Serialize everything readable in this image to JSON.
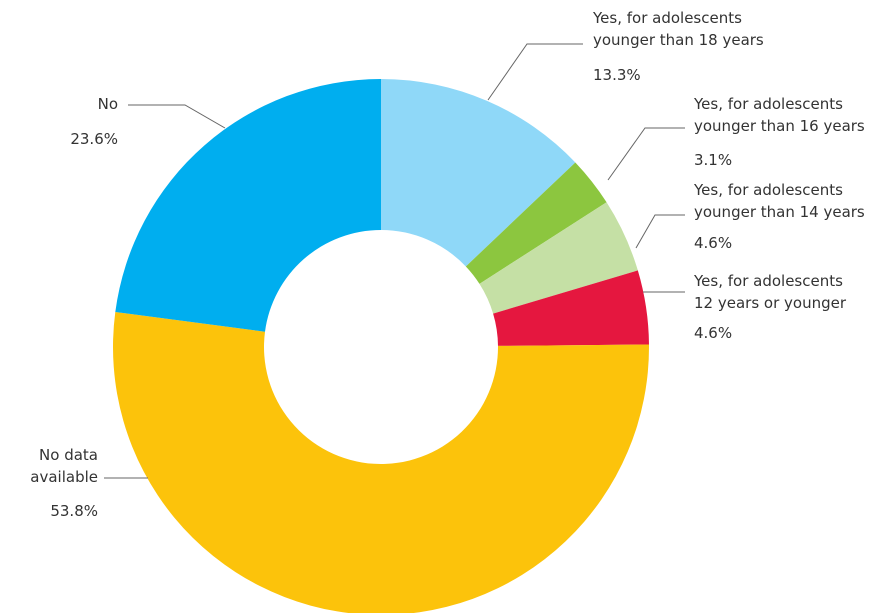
{
  "chart_data": {
    "type": "donut",
    "categories": [
      "Yes, for adolescents\nyounger than 18 years",
      "Yes, for adolescents\nyounger than 16 years",
      "Yes, for adolescents\nyounger than 14 years",
      "Yes, for adolescents\n12 years or younger",
      "No data\navailable",
      "No"
    ],
    "values": [
      13.3,
      3.1,
      4.6,
      4.6,
      53.8,
      23.6
    ],
    "value_labels": [
      "13.3%",
      "3.1%",
      "4.6%",
      "4.6%",
      "53.8%",
      "23.6%"
    ],
    "colors": [
      "#8fd8f8",
      "#8cc63f",
      "#c5e0a5",
      "#e5173f",
      "#fcc30b",
      "#00aeef"
    ]
  }
}
